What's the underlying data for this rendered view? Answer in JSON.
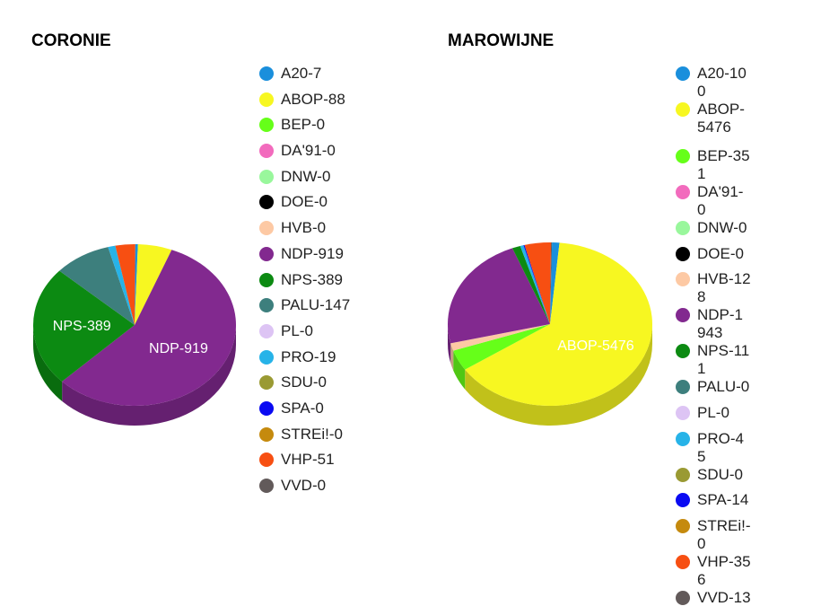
{
  "chart_data": [
    {
      "type": "pie",
      "title": "CORONIE",
      "slices": [
        {
          "name": "A20",
          "value": 7,
          "label": "A20-7",
          "color": "#1a8fdc"
        },
        {
          "name": "ABOP",
          "value": 88,
          "label": "ABOP-88",
          "color": "#f7f721"
        },
        {
          "name": "BEP",
          "value": 0,
          "label": "BEP-0",
          "color": "#66ff19"
        },
        {
          "name": "DA'91",
          "value": 0,
          "label": "DA'91-0",
          "color": "#f26bbd"
        },
        {
          "name": "DNW",
          "value": 0,
          "label": "DNW-0",
          "color": "#99f79c"
        },
        {
          "name": "DOE",
          "value": 0,
          "label": "DOE-0",
          "color": "#000000"
        },
        {
          "name": "HVB",
          "value": 0,
          "label": "HVB-0",
          "color": "#fdc9a4"
        },
        {
          "name": "NDP",
          "value": 919,
          "label": "NDP-919",
          "color": "#82298f"
        },
        {
          "name": "NPS",
          "value": 389,
          "label": "NPS-389",
          "color": "#0c8a12"
        },
        {
          "name": "PALU",
          "value": 147,
          "label": "PALU-147",
          "color": "#3d7f7d"
        },
        {
          "name": "PL",
          "value": 0,
          "label": "PL-0",
          "color": "#ddc4f4"
        },
        {
          "name": "PRO",
          "value": 19,
          "label": "PRO-19",
          "color": "#27b3e8"
        },
        {
          "name": "SDU",
          "value": 0,
          "label": "SDU-0",
          "color": "#9a9a33"
        },
        {
          "name": "SPA",
          "value": 0,
          "label": "SPA-0",
          "color": "#0a0af2"
        },
        {
          "name": "STREi!",
          "value": 0,
          "label": "STREi!-0",
          "color": "#c58a0e"
        },
        {
          "name": "VHP",
          "value": 51,
          "label": "VHP-51",
          "color": "#f74f12"
        },
        {
          "name": "VVD",
          "value": 0,
          "label": "VVD-0",
          "color": "#625a5a"
        }
      ],
      "slice_labels_shown": [
        "NPS-389",
        "NDP-919"
      ]
    },
    {
      "type": "pie",
      "title": "MAROWIJNE",
      "slices": [
        {
          "name": "A20",
          "value": 100,
          "label": "A20-100",
          "color": "#1a8fdc"
        },
        {
          "name": "ABOP",
          "value": 5476,
          "label": "ABOP-5476",
          "color": "#f7f721"
        },
        {
          "name": "BEP",
          "value": 351,
          "label": "BEP-351",
          "color": "#66ff19"
        },
        {
          "name": "DA'91",
          "value": 0,
          "label": "DA'91-0",
          "color": "#f26bbd"
        },
        {
          "name": "DNW",
          "value": 0,
          "label": "DNW-0",
          "color": "#99f79c"
        },
        {
          "name": "DOE",
          "value": 0,
          "label": "DOE-0",
          "color": "#000000"
        },
        {
          "name": "HVB",
          "value": 128,
          "label": "HVB-128",
          "color": "#fdc9a4"
        },
        {
          "name": "NDP",
          "value": 1943,
          "label": "NDP-1943",
          "color": "#82298f"
        },
        {
          "name": "NPS",
          "value": 111,
          "label": "NPS-111",
          "color": "#0c8a12"
        },
        {
          "name": "PALU",
          "value": 0,
          "label": "PALU-0",
          "color": "#3d7f7d"
        },
        {
          "name": "PL",
          "value": 0,
          "label": "PL-0",
          "color": "#ddc4f4"
        },
        {
          "name": "PRO",
          "value": 45,
          "label": "PRO-45",
          "color": "#27b3e8"
        },
        {
          "name": "SDU",
          "value": 0,
          "label": "SDU-0",
          "color": "#9a9a33"
        },
        {
          "name": "SPA",
          "value": 14,
          "label": "SPA-14",
          "color": "#0a0af2"
        },
        {
          "name": "STREi!",
          "value": 0,
          "label": "STREi!-0",
          "color": "#c58a0e"
        },
        {
          "name": "VHP",
          "value": 356,
          "label": "VHP-356",
          "color": "#f74f12"
        },
        {
          "name": "VVD",
          "value": 13,
          "label": "VVD-13",
          "color": "#625a5a"
        }
      ],
      "slice_labels_shown": [
        "ABOP-5476"
      ]
    }
  ]
}
